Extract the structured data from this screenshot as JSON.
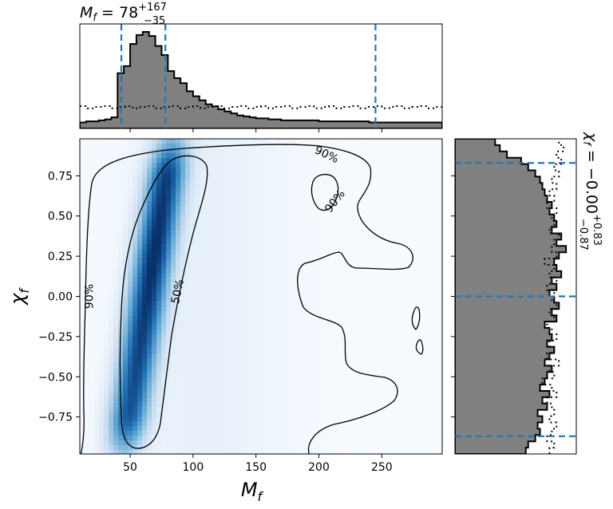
{
  "chart_data": [
    {
      "panel": "top-marginal",
      "type": "histogram",
      "title": {
        "base": "M",
        "sub": "f",
        "eq": " = 78",
        "sup": "+167",
        "sub2": "−35"
      },
      "x_range": [
        10,
        298
      ],
      "bins": [
        [
          10,
          15,
          0.06
        ],
        [
          15,
          20,
          0.07
        ],
        [
          20,
          25,
          0.07
        ],
        [
          25,
          30,
          0.08
        ],
        [
          30,
          35,
          0.09
        ],
        [
          35,
          40,
          0.11
        ],
        [
          40,
          45,
          0.55
        ],
        [
          45,
          50,
          0.62
        ],
        [
          50,
          55,
          0.84
        ],
        [
          55,
          60,
          0.93
        ],
        [
          60,
          65,
          0.96
        ],
        [
          65,
          70,
          0.92
        ],
        [
          70,
          75,
          0.82
        ],
        [
          75,
          80,
          0.73
        ],
        [
          80,
          85,
          0.57
        ],
        [
          85,
          90,
          0.5
        ],
        [
          90,
          95,
          0.45
        ],
        [
          95,
          100,
          0.37
        ],
        [
          100,
          105,
          0.32
        ],
        [
          105,
          110,
          0.28
        ],
        [
          110,
          115,
          0.24
        ],
        [
          115,
          120,
          0.22
        ],
        [
          120,
          125,
          0.19
        ],
        [
          125,
          130,
          0.17
        ],
        [
          130,
          135,
          0.15
        ],
        [
          135,
          140,
          0.13
        ],
        [
          140,
          145,
          0.12
        ],
        [
          145,
          150,
          0.11
        ],
        [
          150,
          160,
          0.1
        ],
        [
          160,
          170,
          0.09
        ],
        [
          170,
          180,
          0.08
        ],
        [
          180,
          200,
          0.08
        ],
        [
          200,
          220,
          0.07
        ],
        [
          220,
          240,
          0.07
        ],
        [
          240,
          260,
          0.06
        ],
        [
          260,
          280,
          0.06
        ],
        [
          280,
          298,
          0.06
        ]
      ],
      "prior_level": 0.21,
      "quantile_lines": [
        43,
        78,
        245
      ],
      "colors": {
        "fill": "#808080",
        "edge": "#000000",
        "quantile": "#1f77b4"
      }
    },
    {
      "panel": "joint-density",
      "type": "heatmap",
      "xlabel": {
        "base": "M",
        "sub": "f"
      },
      "ylabel": {
        "base": "χ",
        "sub": "f"
      },
      "xlim": [
        10,
        298
      ],
      "ylim": [
        -0.98,
        0.98
      ],
      "xticks": [
        50,
        100,
        150,
        200,
        250
      ],
      "yticks": [
        0.75,
        0.5,
        0.25,
        0.0,
        -0.25,
        -0.5,
        -0.75
      ],
      "ytick_labels": [
        "0.75",
        "0.50",
        "0.25",
        "0.00",
        "−0.25",
        "−0.50",
        "−0.75"
      ],
      "colormap": [
        "#f7fbff",
        "#c6dbef",
        "#6baed6",
        "#2171b5",
        "#08306b"
      ],
      "contour_labels": [
        {
          "text": "90%",
          "x": 18,
          "y": 0.0,
          "rotate": -90
        },
        {
          "text": "50%",
          "x": 88,
          "y": 0.03,
          "rotate": -78
        },
        {
          "text": "90%",
          "x": 206,
          "y": 0.88,
          "rotate": 25
        },
        {
          "text": "90%",
          "x": 213,
          "y": 0.59,
          "rotate": -52
        }
      ]
    },
    {
      "panel": "right-marginal",
      "type": "histogram",
      "orientation": "horizontal",
      "title": {
        "base": "χ",
        "sub": "f",
        "eq": " = −0.00",
        "sup": "+0.83",
        "sub2": "−0.87"
      },
      "y_range": [
        -0.98,
        0.98
      ],
      "values": [
        0.6,
        0.62,
        0.68,
        0.72,
        0.7,
        0.74,
        0.7,
        0.78,
        0.74,
        0.8,
        0.72,
        0.76,
        0.78,
        0.82,
        0.76,
        0.8,
        0.84,
        0.78,
        0.82,
        0.8,
        0.76,
        0.86,
        0.82,
        0.88,
        0.84,
        0.8,
        0.86,
        0.82,
        0.9,
        0.86,
        0.84,
        0.88,
        0.94,
        0.86,
        0.9,
        0.82,
        0.86,
        0.84,
        0.8,
        0.82,
        0.78,
        0.76,
        0.74,
        0.72,
        0.68,
        0.62,
        0.56,
        0.44,
        0.38,
        0.34
      ],
      "prior_values": [
        0.8,
        0.84,
        0.78,
        0.82,
        0.86,
        0.8,
        0.84,
        0.82,
        0.78,
        0.86,
        0.82,
        0.74,
        0.84,
        0.8,
        0.88,
        0.78,
        0.84,
        0.8,
        0.86,
        0.82,
        0.78,
        0.84,
        0.8,
        0.86,
        0.82,
        0.84,
        0.78,
        0.86,
        0.8,
        0.84,
        0.76,
        0.86,
        0.82,
        0.84,
        0.88,
        0.8,
        0.84,
        0.82,
        0.86,
        0.78,
        0.84,
        0.8,
        0.86,
        0.82,
        0.88,
        0.84,
        0.9,
        0.86,
        0.92,
        0.88
      ],
      "max": 1.0,
      "quantile_lines": [
        -0.87,
        0.0,
        0.83
      ],
      "colors": {
        "fill": "#808080",
        "edge": "#000000",
        "quantile": "#1f77b4"
      }
    }
  ]
}
